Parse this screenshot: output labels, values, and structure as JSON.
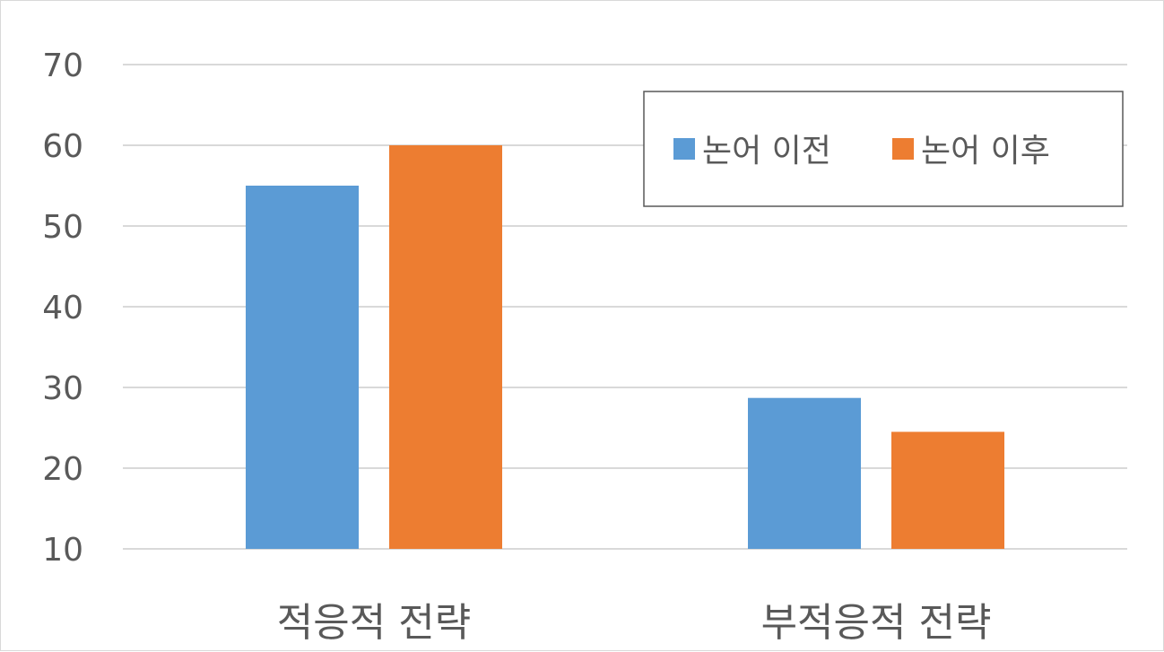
{
  "chart_data": {
    "type": "bar",
    "categories": [
      "적응적 전략",
      "부적응적 전략"
    ],
    "series": [
      {
        "name": "논어 이전",
        "values": [
          55,
          28.7
        ],
        "color": "#5b9bd5"
      },
      {
        "name": "논어 이후",
        "values": [
          60,
          24.5
        ],
        "color": "#ed7d31"
      }
    ],
    "ylim": [
      10,
      70
    ],
    "yticks": [
      10,
      20,
      30,
      40,
      50,
      60,
      70
    ],
    "grid": true,
    "legend_position": "top-right",
    "title": "",
    "xlabel": "",
    "ylabel": ""
  }
}
